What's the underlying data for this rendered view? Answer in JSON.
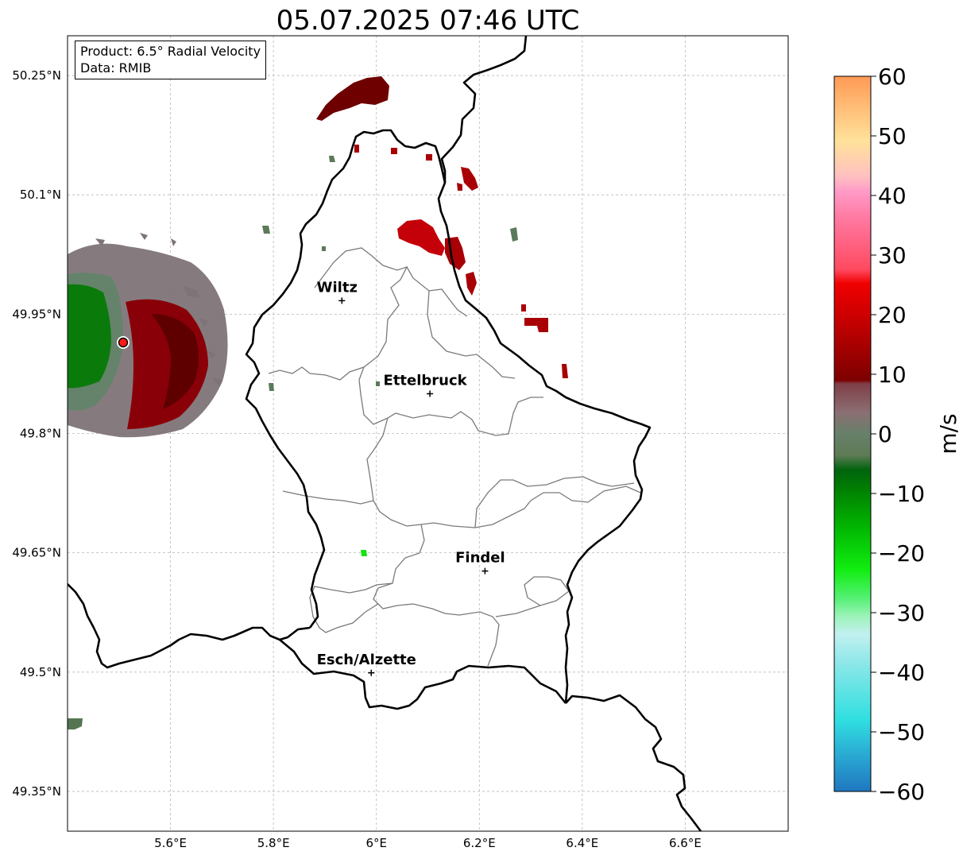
{
  "title": "05.07.2025 07:46 UTC",
  "info": {
    "product": "Product: 6.5° Radial Velocity",
    "data": "Data: RMIB"
  },
  "map": {
    "lon_range": [
      5.4,
      6.8
    ],
    "lat_range": [
      49.3,
      50.3
    ],
    "lon_ticks": [
      "5.6°E",
      "5.8°E",
      "6°E",
      "6.2°E",
      "6.4°E",
      "6.6°E"
    ],
    "lat_ticks": [
      "49.35°N",
      "49.5°N",
      "49.65°N",
      "49.8°N",
      "49.95°N",
      "50.1°N",
      "50.25°N"
    ],
    "grid": true,
    "radar_site": {
      "lon": 5.506,
      "lat": 49.914
    },
    "cities": [
      {
        "name": "Wiltz",
        "lon": 5.933,
        "lat": 49.967
      },
      {
        "name": "Ettelbruck",
        "lon": 6.104,
        "lat": 49.85
      },
      {
        "name": "Findel",
        "lon": 6.211,
        "lat": 49.627
      },
      {
        "name": "Esch/Alzette",
        "lon": 5.99,
        "lat": 49.499
      }
    ]
  },
  "colorbar": {
    "label": "m/s",
    "range": [
      -60,
      60
    ],
    "ticks": [
      "60",
      "50",
      "40",
      "30",
      "20",
      "10",
      "0",
      "−10",
      "−20",
      "−30",
      "−40",
      "−50",
      "−60"
    ]
  },
  "colors": {
    "outgoing_red": "#9c0000",
    "incoming_green": "#007a00",
    "near_zero": "#6b7e68",
    "border": "#000000",
    "cantons": "#7a7a7a"
  }
}
